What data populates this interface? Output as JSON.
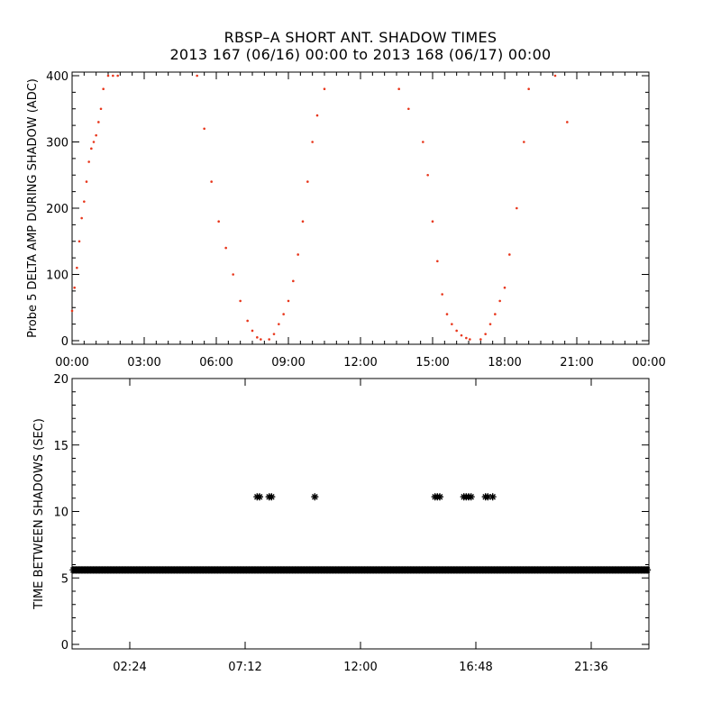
{
  "title": "RBSP–A SHORT ANT. SHADOW TIMES",
  "subtitle": "2013 167 (06/16) 00:00 to 2013 168 (06/17) 00:00",
  "colors": {
    "scatter": "#e8361b",
    "axes": "#000000"
  },
  "chart_data": [
    {
      "type": "scatter",
      "ylabel": "Probe 5 DELTA AMP DURING SHADOW (ADC)",
      "xlim": [
        0,
        24
      ],
      "ylim": [
        0,
        400
      ],
      "x_ticks": [
        "00:00",
        "03:00",
        "06:00",
        "09:00",
        "12:00",
        "15:00",
        "18:00",
        "21:00",
        "00:00"
      ],
      "y_ticks": [
        "0",
        "100",
        "200",
        "300",
        "400"
      ],
      "color": "#e8361b",
      "series": [
        {
          "x": [
            0.0,
            0.1,
            0.2,
            0.3,
            0.4,
            0.5,
            0.6,
            0.7,
            0.8,
            0.9,
            1.0,
            1.1,
            1.2,
            1.3,
            1.5,
            1.7,
            1.9,
            5.2,
            5.5,
            5.8,
            6.1,
            6.4,
            6.7,
            7.0,
            7.3,
            7.5,
            7.7,
            7.85,
            8.2,
            8.4,
            8.6,
            8.8,
            9.0,
            9.2,
            9.4,
            9.6,
            9.8,
            10.0,
            10.2,
            10.5,
            13.6,
            14.0,
            14.6,
            14.8,
            15.0,
            15.2,
            15.4,
            15.6,
            15.8,
            16.0,
            16.2,
            16.4,
            16.55,
            17.0,
            17.2,
            17.4,
            17.6,
            17.8,
            18.0,
            18.2,
            18.5,
            18.8,
            19.0,
            20.1,
            20.6
          ],
          "y": [
            45,
            80,
            110,
            150,
            185,
            210,
            240,
            270,
            290,
            300,
            310,
            330,
            350,
            380,
            400,
            410,
            400,
            400,
            320,
            240,
            180,
            140,
            100,
            60,
            30,
            15,
            5,
            2,
            2,
            10,
            25,
            40,
            60,
            90,
            130,
            180,
            240,
            300,
            340,
            380,
            380,
            350,
            300,
            250,
            180,
            120,
            70,
            40,
            25,
            15,
            8,
            4,
            2,
            2,
            10,
            25,
            40,
            60,
            80,
            130,
            200,
            300,
            380,
            400,
            330
          ]
        }
      ]
    },
    {
      "type": "scatter",
      "ylabel": "TIME BETWEEN SHADOWS (SEC)",
      "xlim": [
        0,
        24
      ],
      "ylim": [
        0,
        20
      ],
      "x_ticks": [
        "02:24",
        "07:12",
        "12:00",
        "16:48",
        "21:36"
      ],
      "y_ticks": [
        "0",
        "5",
        "10",
        "15",
        "20"
      ],
      "marker": "asterisk",
      "color": "#000000",
      "series": [
        {
          "name": "baseline",
          "x_range": [
            0,
            24
          ],
          "y": 5.6
        },
        {
          "name": "gaps",
          "x": [
            7.7,
            7.8,
            8.2,
            8.3,
            10.1,
            15.1,
            15.2,
            15.3,
            16.3,
            16.4,
            16.5,
            16.6,
            17.2,
            17.3,
            17.5
          ],
          "y": [
            11.1,
            11.1,
            11.1,
            11.1,
            11.1,
            11.1,
            11.1,
            11.1,
            11.1,
            11.1,
            11.1,
            11.1,
            11.1,
            11.1,
            11.1
          ]
        }
      ]
    }
  ]
}
